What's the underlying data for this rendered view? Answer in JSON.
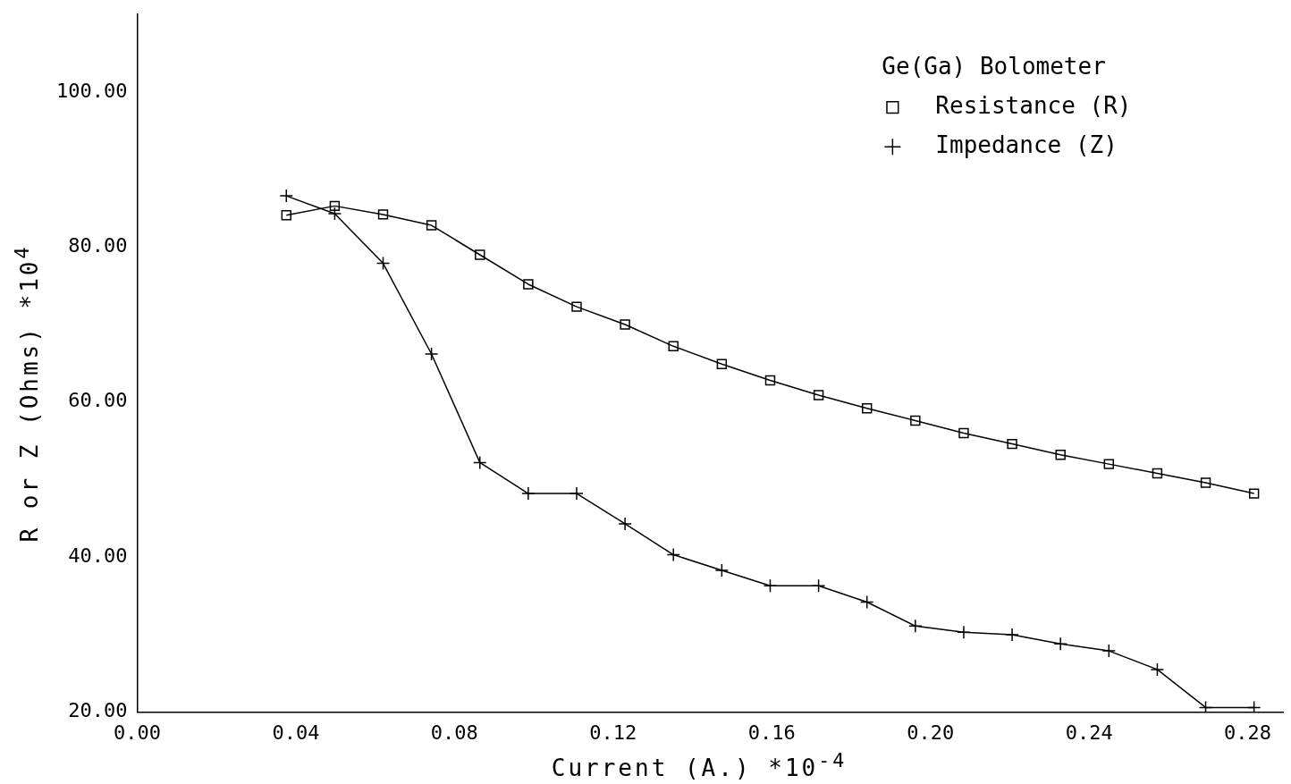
{
  "chart_data": {
    "type": "line",
    "xlabel": "Current (A.) *10$^{-4}$",
    "ylabel": "R or Z (Ohms) *10$^{4}$",
    "legend_title": "Ge(Ga) Bolometer",
    "legend": "top right",
    "grid": false,
    "line_style": "solid",
    "x": [
      0.0376,
      0.0498,
      0.062,
      0.0742,
      0.0864,
      0.0986,
      0.1108,
      0.123,
      0.1352,
      0.1474,
      0.1596,
      0.1718,
      0.184,
      0.1962,
      0.2084,
      0.2206,
      0.2328,
      0.245,
      0.2572,
      0.2694,
      0.2816
    ],
    "series": [
      {
        "name": "Resistance (R)",
        "color": "#000000",
        "marker": "square",
        "values": [
          84.1,
          85.3,
          84.2,
          82.8,
          79.0,
          75.2,
          72.3,
          70.0,
          67.2,
          64.9,
          62.8,
          60.9,
          59.2,
          57.6,
          56.0,
          54.6,
          53.2,
          52.0,
          50.8,
          49.6,
          48.2
        ]
      },
      {
        "name": "Impedance (Z)",
        "color": "#000000",
        "marker": "cross",
        "values": [
          86.6,
          84.3,
          77.9,
          66.2,
          52.2,
          48.2,
          48.2,
          44.3,
          40.3,
          38.3,
          36.3,
          36.3,
          34.2,
          31.1,
          30.3,
          30.0,
          28.8,
          27.9,
          25.5,
          20.6,
          20.6
        ]
      }
    ],
    "xlim": [
      0,
      0.289
    ],
    "ylim": [
      20,
      110
    ],
    "xticks": [
      {
        "value": 0,
        "label": "0.00"
      },
      {
        "value": 0.04,
        "label": "0.04"
      },
      {
        "value": 0.08,
        "label": "0.08"
      },
      {
        "value": 0.12,
        "label": "0.12"
      },
      {
        "value": 0.16,
        "label": "0.16"
      },
      {
        "value": 0.2,
        "label": "0.20"
      },
      {
        "value": 0.24,
        "label": "0.24"
      },
      {
        "value": 0.28,
        "label": "0.28"
      }
    ],
    "yticks": [
      {
        "value": 20,
        "label": "20.00"
      },
      {
        "value": 40,
        "label": "40.00"
      },
      {
        "value": 60,
        "label": "60.00"
      },
      {
        "value": 80,
        "label": "80.00"
      },
      {
        "value": 100,
        "label": "100.00"
      }
    ]
  }
}
